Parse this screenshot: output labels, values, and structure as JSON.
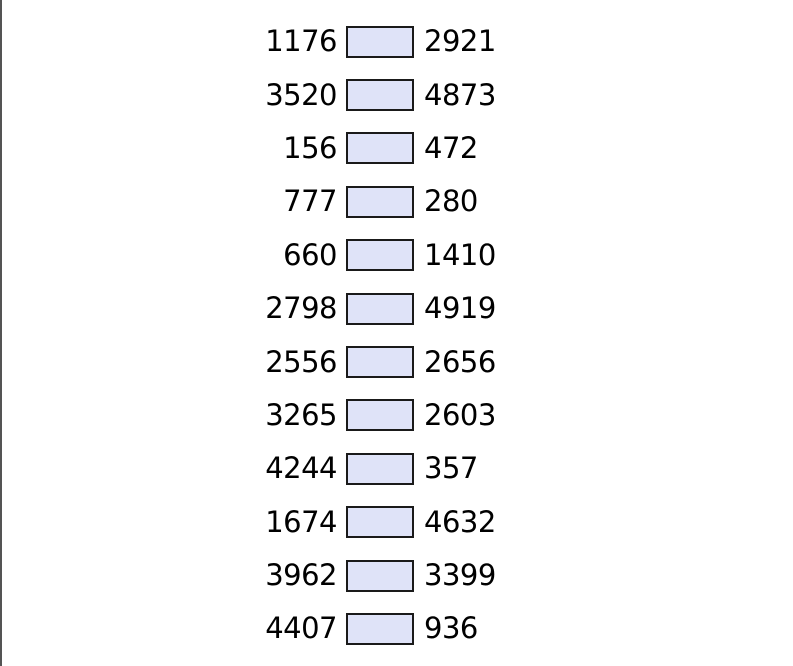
{
  "page": {
    "background_color": "#ffffff",
    "left_edge_line_color": "#545454"
  },
  "worksheet": {
    "field_fill_color": "#dfe3f8",
    "field_border_color": "#1a1a1a",
    "text_color": "#000000",
    "rows": [
      {
        "left": "1176",
        "value": "",
        "right": "2921"
      },
      {
        "left": "3520",
        "value": "",
        "right": "4873"
      },
      {
        "left": "156",
        "value": "",
        "right": "472"
      },
      {
        "left": "777",
        "value": "",
        "right": "280"
      },
      {
        "left": "660",
        "value": "",
        "right": "1410"
      },
      {
        "left": "2798",
        "value": "",
        "right": "4919"
      },
      {
        "left": "2556",
        "value": "",
        "right": "2656"
      },
      {
        "left": "3265",
        "value": "",
        "right": "2603"
      },
      {
        "left": "4244",
        "value": "",
        "right": "357"
      },
      {
        "left": "1674",
        "value": "",
        "right": "4632"
      },
      {
        "left": "3962",
        "value": "",
        "right": "3399"
      },
      {
        "left": "4407",
        "value": "",
        "right": "936"
      }
    ]
  }
}
